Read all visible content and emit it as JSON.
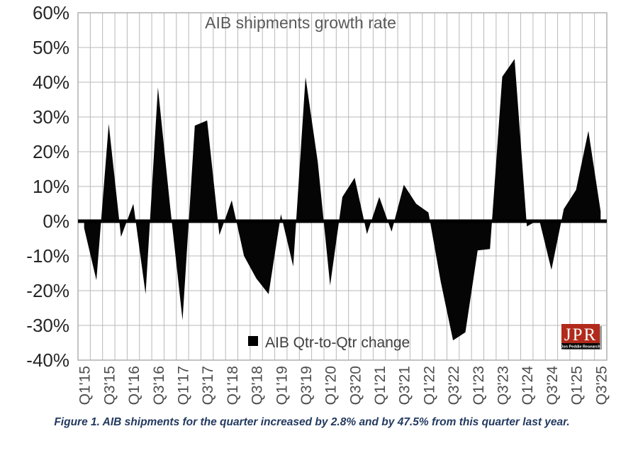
{
  "title": "AIB shipments growth rate",
  "legend": {
    "label": "AIB Qtr-to-Qtr change"
  },
  "caption": "Figure 1. AIB shipments for the quarter increased by 2.8% and by 47.5% from this quarter last year.",
  "logo": {
    "text": "JPR",
    "subtext": "Jon Peddie Research",
    "bg_color": "#b22a1b"
  },
  "colors": {
    "area_fill": "#050505",
    "gridline": "#b8b8b8",
    "title_text": "#595959",
    "caption_text": "#233a60"
  },
  "chart_data": {
    "type": "area",
    "title": "AIB shipments growth rate",
    "legend_label": "AIB Qtr-to-Qtr change",
    "legend_position": "bottom-center-inside",
    "grid": "both",
    "ylim": [
      -40,
      60
    ],
    "y_ticks": [
      60,
      50,
      40,
      30,
      20,
      10,
      0,
      -10,
      -20,
      -30,
      -40
    ],
    "y_tick_labels": [
      "60%",
      "50%",
      "40%",
      "30%",
      "20%",
      "10%",
      "0%",
      "-10%",
      "-20%",
      "-30%",
      "-40%"
    ],
    "x_tick_labels": [
      "Q1'15",
      "Q3'15",
      "Q1'16",
      "Q3'16",
      "Q1'17",
      "Q3'17",
      "Q1'18",
      "Q3'18",
      "Q1'19",
      "Q3'19",
      "Q1'20",
      "Q3'20",
      "Q1'21",
      "Q3'21",
      "Q1'22",
      "Q3'22",
      "Q1'23",
      "Q3'23",
      "Q1'24",
      "Q3'24",
      "Q1'25",
      "Q3'25"
    ],
    "categories": [
      "Q1'15",
      "Q2'15",
      "Q3'15",
      "Q4'15",
      "Q1'16",
      "Q2'16",
      "Q3'16",
      "Q4'16",
      "Q1'17",
      "Q2'17",
      "Q3'17",
      "Q4'17",
      "Q1'18",
      "Q2'18",
      "Q3'18",
      "Q4'18",
      "Q1'19",
      "Q2'19",
      "Q3'19",
      "Q4'19",
      "Q1'20",
      "Q2'20",
      "Q3'20",
      "Q4'20",
      "Q1'21",
      "Q2'21",
      "Q3'21",
      "Q4'21",
      "Q1'22",
      "Q2'22",
      "Q3'22",
      "Q4'22",
      "Q1'23",
      "Q2'23",
      "Q3'23",
      "Q4'23",
      "Q1'24",
      "Q2'24",
      "Q3'24",
      "Q4'24",
      "Q1'25",
      "Q2'25",
      "Q3'25"
    ],
    "values": [
      -2,
      -17,
      28,
      -4.5,
      5,
      -21,
      38.5,
      4,
      -28.5,
      27.5,
      29,
      -4,
      6,
      -10,
      -16.5,
      -21,
      2,
      -13,
      41.5,
      17,
      -18.5,
      7,
      12.5,
      -3.7,
      7,
      -3,
      10.5,
      5,
      2.5,
      -17.5,
      -34.3,
      -32,
      -8.4,
      -8,
      41.6,
      46.7,
      -1.5,
      0.5,
      -14,
      3.5,
      9,
      26,
      2.8
    ]
  }
}
